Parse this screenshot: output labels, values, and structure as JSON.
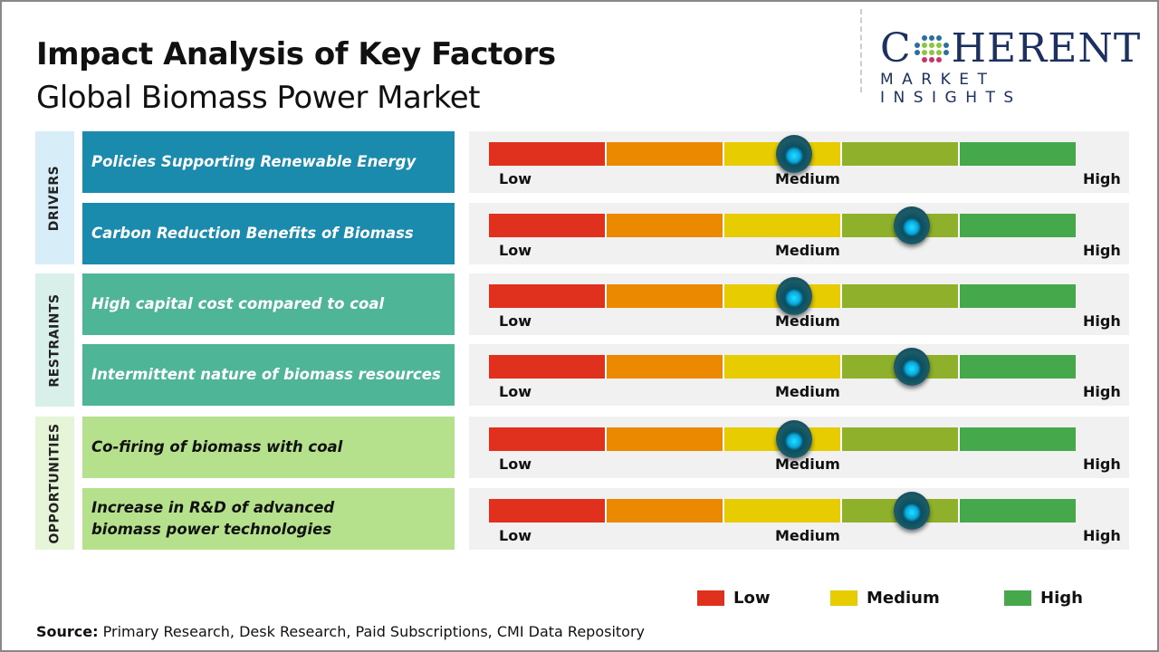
{
  "header": {
    "title": "Impact Analysis of Key Factors",
    "subtitle": "Global Biomass Power Market"
  },
  "logo": {
    "main_left": "C",
    "main_right": "HERENT",
    "sub": "MARKET INSIGHTS"
  },
  "categories": [
    {
      "label": "DRIVERS",
      "color": "#d7eef8"
    },
    {
      "label": "RESTRAINTS",
      "color": "#d9f0ea"
    },
    {
      "label": "OPPORTUNITIES",
      "color": "#e6f5d8"
    }
  ],
  "scale": {
    "low": "Low",
    "medium": "Medium",
    "high": "High",
    "segment_colors": [
      "#e0301e",
      "#eb8a00",
      "#e6cc00",
      "#8fb02a",
      "#45a84a"
    ]
  },
  "rows": [
    {
      "factor": "Policies Supporting Renewable Energy",
      "category": "DRIVERS",
      "level": 0.52,
      "bg": "#1a8aad",
      "fg": "#ffffff"
    },
    {
      "factor": "Carbon Reduction Benefits of Biomass",
      "category": "DRIVERS",
      "level": 0.72,
      "bg": "#1a8aad",
      "fg": "#ffffff"
    },
    {
      "factor": "High capital cost compared to coal",
      "category": "RESTRAINTS",
      "level": 0.52,
      "bg": "#4fb597",
      "fg": "#ffffff"
    },
    {
      "factor": "Intermittent nature of biomass resources",
      "category": "RESTRAINTS",
      "level": 0.72,
      "bg": "#4fb597",
      "fg": "#ffffff"
    },
    {
      "factor": "Co-firing of biomass with coal",
      "category": "OPPORTUNITIES",
      "level": 0.52,
      "bg": "#b5e08c",
      "fg": "#111111"
    },
    {
      "factor": "Increase in R&D of advanced biomass power technologies",
      "category": "OPPORTUNITIES",
      "level": 0.72,
      "bg": "#b5e08c",
      "fg": "#111111"
    }
  ],
  "legend": [
    {
      "label": "Low",
      "color": "#e0301e"
    },
    {
      "label": "Medium",
      "color": "#e6cc00"
    },
    {
      "label": "High",
      "color": "#45a84a"
    }
  ],
  "footer": {
    "source_label": "Source:",
    "source_text": " Primary Research, Desk Research, Paid Subscriptions, CMI Data Repository"
  }
}
